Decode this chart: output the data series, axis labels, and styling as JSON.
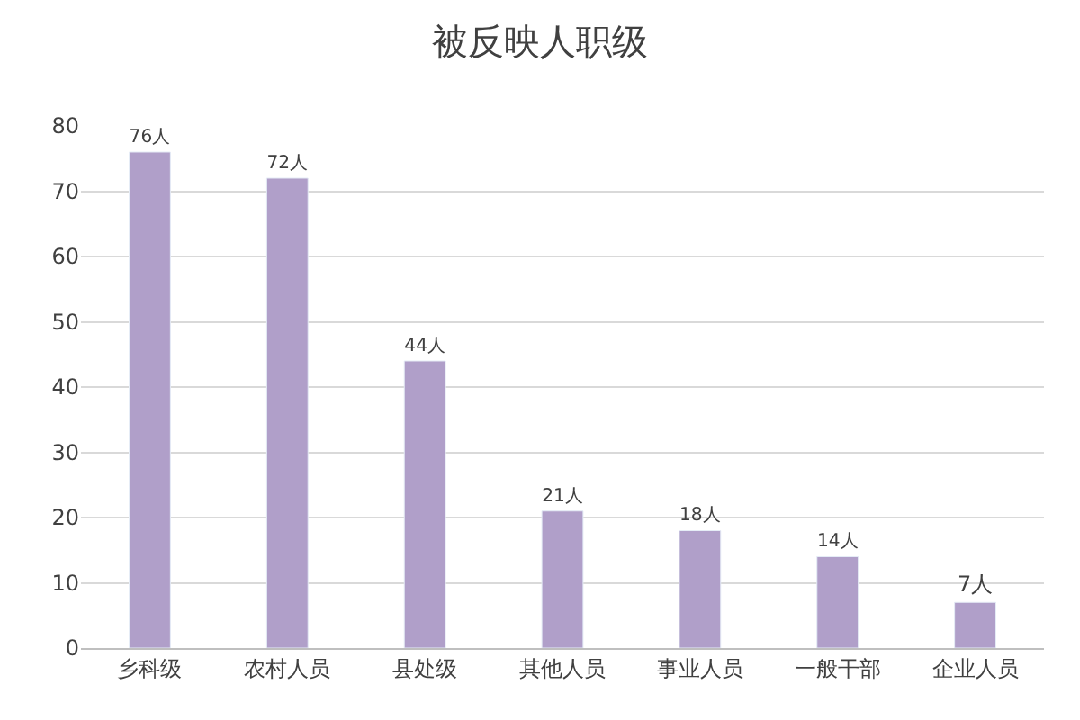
{
  "chart_data": {
    "type": "bar",
    "title": "被反映人职级",
    "categories": [
      "乡科级",
      "农村人员",
      "县处级",
      "其他人员",
      "事业人员",
      "一般干部",
      "企业人员"
    ],
    "values": [
      76,
      72,
      44,
      21,
      18,
      14,
      7
    ],
    "value_labels": [
      "76人",
      "72人",
      "44人",
      "21人",
      "18人",
      "14人",
      "7人"
    ],
    "color": "#b09fc9",
    "ylim": [
      0,
      80
    ],
    "yticks": [
      0,
      10,
      20,
      30,
      40,
      50,
      60,
      70,
      80
    ],
    "grid": "y"
  }
}
